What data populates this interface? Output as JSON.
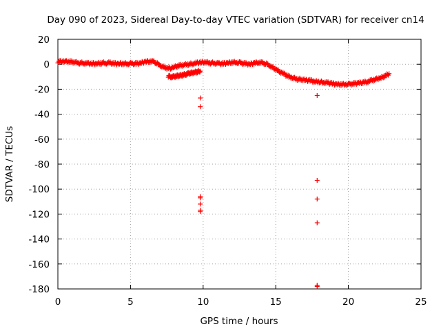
{
  "chart_data": {
    "type": "scatter",
    "title": "Day 090 of 2023, Sidereal Day-to-day VTEC variation (SDTVAR) for receiver cn14",
    "xlabel": "GPS time / hours",
    "ylabel": "SDTVAR / TECUs",
    "xlim": [
      0,
      25
    ],
    "ylim": [
      -180,
      20
    ],
    "xticks": [
      0,
      5,
      10,
      15,
      20,
      25
    ],
    "yticks": [
      20,
      0,
      -20,
      -40,
      -60,
      -80,
      -100,
      -120,
      -140,
      -160,
      -180
    ],
    "grid": true,
    "marker": "+",
    "color": "#ff0000",
    "series": [
      {
        "name": "main band",
        "x": [
          0.0,
          0.3,
          0.6,
          0.9,
          1.2,
          1.5,
          1.8,
          2.1,
          2.4,
          2.7,
          3.0,
          3.3,
          3.6,
          3.9,
          4.2,
          4.5,
          4.8,
          5.1,
          5.4,
          5.7,
          6.0,
          6.3,
          6.6,
          6.9,
          7.2,
          7.5,
          7.8,
          8.1,
          8.4,
          8.7,
          9.0,
          9.3,
          9.6,
          9.9,
          10.2,
          10.5,
          10.8,
          11.1,
          11.4,
          11.7,
          12.0,
          12.3,
          12.6,
          12.9,
          13.2,
          13.5,
          13.8,
          14.1,
          14.4,
          14.7,
          15.0,
          15.3,
          15.6,
          15.9,
          16.2,
          16.5,
          16.8,
          17.1,
          17.4,
          17.7,
          18.0,
          18.3,
          18.6,
          18.9,
          19.2,
          19.5,
          19.8,
          20.1,
          20.4,
          20.7,
          21.0,
          21.3,
          21.6,
          21.9,
          22.2,
          22.5,
          22.8
        ],
        "y": [
          2,
          2.5,
          2,
          2,
          1.5,
          1,
          1,
          0.5,
          0.5,
          0.5,
          1,
          1,
          1,
          0.5,
          0.5,
          0.5,
          0.5,
          0.5,
          0.5,
          1,
          2,
          2.5,
          2,
          0,
          -2,
          -3,
          -3,
          -2,
          -1,
          -0.5,
          0,
          0.5,
          1,
          1.5,
          1.5,
          1,
          1,
          0.5,
          0.5,
          1,
          1.5,
          1.5,
          1,
          0.5,
          0,
          1,
          1.5,
          1,
          0,
          -2,
          -4,
          -6,
          -8,
          -10,
          -11,
          -12,
          -12,
          -13,
          -13,
          -14,
          -14,
          -14.5,
          -15,
          -15.5,
          -16,
          -16,
          -16,
          -16,
          -15.5,
          -15,
          -14.5,
          -14,
          -13,
          -12,
          -11,
          -9.5,
          -7.5
        ]
      },
      {
        "name": "lower branch",
        "x": [
          7.6,
          7.8,
          8.0,
          8.2,
          8.4,
          8.6,
          8.8,
          9.0,
          9.2,
          9.4,
          9.6,
          9.8
        ],
        "y": [
          -9.5,
          -10,
          -10,
          -9.5,
          -9,
          -8.5,
          -8,
          -7.5,
          -7,
          -6.5,
          -6,
          -5.5
        ]
      },
      {
        "name": "outliers",
        "x": [
          9.8,
          9.8,
          9.8,
          9.8,
          9.8,
          9.8,
          9.8,
          17.85,
          17.85,
          17.85,
          17.85,
          17.85,
          17.85
        ],
        "y": [
          -27,
          -34,
          -106,
          -107,
          -112,
          -117,
          -118,
          -25,
          -93,
          -108,
          -127,
          -177,
          -178
        ]
      }
    ]
  }
}
